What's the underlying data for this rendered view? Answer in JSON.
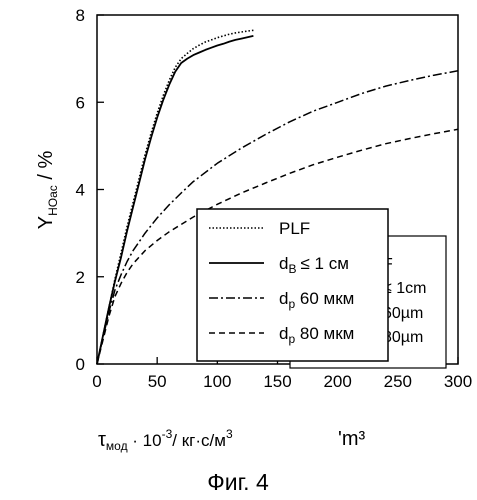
{
  "chart_data": {
    "type": "line",
    "xlim": [
      0,
      300
    ],
    "ylim": [
      0,
      8
    ],
    "x_ticks": [
      "0",
      "50",
      "100",
      "150",
      "200",
      "250",
      "300"
    ],
    "y_ticks": [
      "0",
      "2",
      "4",
      "6",
      "8"
    ],
    "grid": false,
    "ylabel": {
      "main": "Y",
      "sub": "HOac",
      "rest": " / %"
    },
    "xlabel": {
      "tau": "τ",
      "sub": "мод",
      "mid": " · 10",
      "sup": "-3",
      "rest": "/ кг·с/м",
      "sup2": "3"
    },
    "xlabel_fragment": "'m³",
    "legend": {
      "placement": "lower-right",
      "entries": [
        {
          "style": "dotted",
          "label": "PLF"
        },
        {
          "style": "solid",
          "label": "d_B ≤ 1 см",
          "main": "d",
          "sub": "B",
          "rest": "≤ 1 см"
        },
        {
          "style": "dashdot",
          "label": "d_p 60 мкм",
          "main": "d",
          "sub": "p",
          "rest": " 60 мкм"
        },
        {
          "style": "dashed",
          "label": "d_p 80 мкм",
          "main": "d",
          "sub": "p",
          "rest": " 80 мкм"
        }
      ]
    },
    "legend_ghost": [
      "F",
      "≤ 1cm",
      "60µm",
      "80µm"
    ],
    "series": [
      {
        "name": "PLF",
        "style": "dotted",
        "x": [
          0,
          5,
          10,
          15,
          20,
          25,
          30,
          35,
          40,
          45,
          50,
          55,
          60,
          65,
          70,
          75,
          80,
          85,
          90,
          95,
          100,
          105,
          110,
          115,
          120,
          125,
          130
        ],
        "y": [
          0,
          0.65,
          1.3,
          1.95,
          2.55,
          3.15,
          3.7,
          4.25,
          4.8,
          5.3,
          5.75,
          6.15,
          6.5,
          6.8,
          7.0,
          7.12,
          7.23,
          7.31,
          7.38,
          7.43,
          7.48,
          7.52,
          7.56,
          7.59,
          7.61,
          7.63,
          7.65
        ]
      },
      {
        "name": "d_B ≤ 1 см",
        "style": "solid",
        "x": [
          0,
          5,
          10,
          15,
          20,
          25,
          30,
          35,
          40,
          45,
          50,
          55,
          60,
          65,
          70,
          75,
          80,
          85,
          90,
          95,
          100,
          105,
          110,
          115,
          120,
          125,
          130
        ],
        "y": [
          0,
          0.65,
          1.3,
          1.9,
          2.45,
          3.05,
          3.6,
          4.15,
          4.7,
          5.2,
          5.65,
          6.05,
          6.4,
          6.7,
          6.9,
          7.0,
          7.08,
          7.14,
          7.2,
          7.25,
          7.3,
          7.34,
          7.39,
          7.43,
          7.46,
          7.49,
          7.52
        ]
      },
      {
        "name": "d_p 60 мкм",
        "style": "dashdot",
        "x": [
          0,
          5,
          10,
          15,
          20,
          25,
          30,
          40,
          50,
          60,
          70,
          80,
          100,
          120,
          140,
          160,
          180,
          200,
          220,
          240,
          260,
          280,
          300
        ],
        "y": [
          0,
          0.6,
          1.2,
          1.7,
          2.05,
          2.35,
          2.6,
          3.0,
          3.35,
          3.65,
          3.92,
          4.18,
          4.6,
          4.95,
          5.26,
          5.55,
          5.8,
          6.0,
          6.2,
          6.37,
          6.5,
          6.62,
          6.72
        ]
      },
      {
        "name": "d_p 80 мкм",
        "style": "dashed",
        "x": [
          0,
          5,
          10,
          15,
          20,
          25,
          30,
          40,
          50,
          60,
          70,
          80,
          100,
          120,
          140,
          160,
          180,
          200,
          220,
          240,
          260,
          280,
          300
        ],
        "y": [
          0,
          0.55,
          1.1,
          1.55,
          1.85,
          2.1,
          2.3,
          2.6,
          2.83,
          3.03,
          3.2,
          3.37,
          3.66,
          3.92,
          4.15,
          4.37,
          4.57,
          4.74,
          4.9,
          5.05,
          5.17,
          5.28,
          5.38
        ]
      }
    ]
  },
  "caption": "Фиг. 4"
}
